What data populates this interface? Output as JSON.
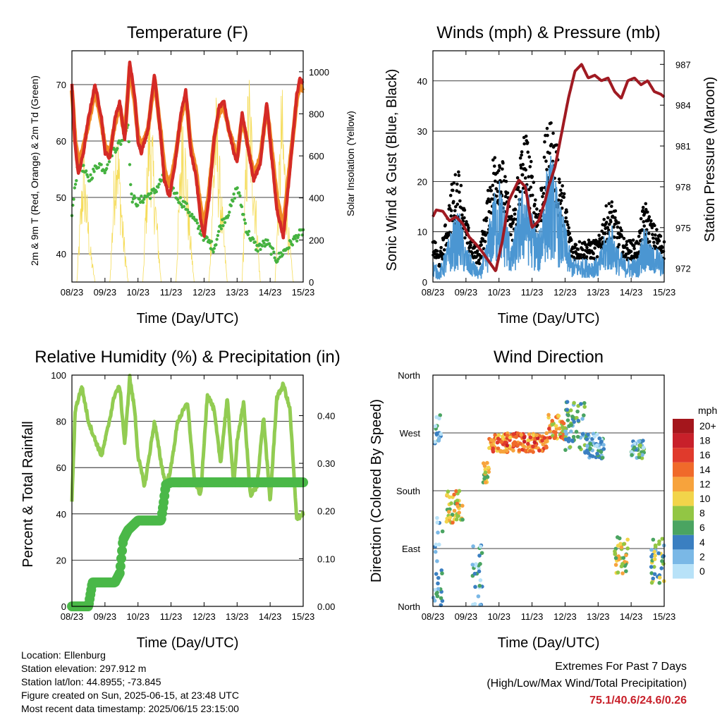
{
  "chart_data": [
    {
      "type": "line",
      "title": "Temperature (F)",
      "xlabel": "Time (Day/UTC)",
      "ylabel": "2m & 9m T (Red, Orange) & 2m Td (Green)",
      "ylabel_right": "Solar Insolation (Yellow)",
      "x_ticks": [
        "08/23",
        "09/23",
        "10/23",
        "11/23",
        "12/23",
        "13/23",
        "14/23",
        "15/23"
      ],
      "xlim": [
        0,
        7
      ],
      "ylim": [
        35,
        76
      ],
      "y_ticks": [
        40,
        50,
        60,
        70
      ],
      "y2lim": [
        0,
        1100
      ],
      "y2_ticks": [
        0,
        200,
        400,
        600,
        800,
        1000
      ],
      "series": [
        {
          "name": "2m T",
          "color": "#d42a26",
          "x": [
            0,
            0.1,
            0.2,
            0.35,
            0.5,
            0.7,
            0.9,
            1.0,
            1.15,
            1.3,
            1.45,
            1.6,
            1.75,
            1.9,
            2.0,
            2.1,
            2.3,
            2.5,
            2.7,
            2.8,
            2.95,
            3.1,
            3.3,
            3.45,
            3.6,
            3.75,
            3.9,
            4.0,
            4.15,
            4.3,
            4.45,
            4.6,
            4.75,
            4.9,
            5.0,
            5.15,
            5.3,
            5.5,
            5.7,
            5.9,
            6.0,
            6.2,
            6.4,
            6.6,
            6.8,
            6.9,
            7.0
          ],
          "y": [
            70,
            59,
            54,
            58,
            64,
            70,
            64,
            58,
            57,
            64,
            67,
            60,
            74,
            68,
            60,
            58,
            62,
            72,
            60,
            53,
            50,
            55,
            65,
            69,
            58,
            54,
            46,
            43,
            50,
            60,
            66,
            67,
            62,
            58,
            56,
            65,
            60,
            53,
            56,
            67,
            60,
            48,
            43,
            55,
            68,
            71,
            70
          ]
        },
        {
          "name": "9m T",
          "color": "#f08a25",
          "x": [
            0,
            0.1,
            0.2,
            0.35,
            0.5,
            0.7,
            0.9,
            1.0,
            1.15,
            1.3,
            1.45,
            1.6,
            1.75,
            1.9,
            2.0,
            2.1,
            2.3,
            2.5,
            2.7,
            2.8,
            2.95,
            3.1,
            3.3,
            3.45,
            3.6,
            3.75,
            3.9,
            4.0,
            4.15,
            4.3,
            4.45,
            4.6,
            4.75,
            4.9,
            5.0,
            5.15,
            5.3,
            5.5,
            5.7,
            5.9,
            6.0,
            6.2,
            6.4,
            6.6,
            6.8,
            6.9,
            7.0
          ],
          "y": [
            69,
            60,
            56,
            59,
            63,
            69,
            63,
            59,
            58,
            63,
            66,
            61,
            73,
            67,
            61,
            59,
            62,
            71,
            61,
            55,
            52,
            56,
            64,
            68,
            59,
            55,
            48,
            45,
            51,
            60,
            65,
            66,
            62,
            59,
            57,
            64,
            60,
            54,
            57,
            66,
            61,
            50,
            45,
            56,
            67,
            70,
            69
          ]
        },
        {
          "name": "2m Td",
          "color": "#45b240",
          "x": [
            0,
            0.2,
            0.5,
            0.8,
            1.0,
            1.2,
            1.5,
            1.7,
            1.8,
            2.0,
            2.2,
            2.5,
            2.8,
            3.0,
            3.2,
            3.5,
            3.8,
            4.0,
            4.3,
            4.5,
            4.8,
            5.0,
            5.3,
            5.6,
            5.9,
            6.2,
            6.5,
            6.8,
            7.0
          ],
          "y": [
            47,
            57,
            53,
            56,
            55,
            58,
            60,
            63,
            50,
            49,
            50,
            51,
            54,
            52,
            50,
            48,
            45,
            43,
            41,
            45,
            48,
            52,
            44,
            41,
            42,
            39,
            41,
            43,
            44
          ]
        },
        {
          "name": "Solar Insolation",
          "axis": "right",
          "color": "#f5dc5a",
          "x": [
            0,
            0.15,
            0.35,
            0.55,
            0.7,
            1.0,
            1.15,
            1.35,
            1.55,
            1.7,
            2.0,
            2.15,
            2.35,
            2.55,
            2.7,
            3.0,
            3.15,
            3.35,
            3.55,
            3.7,
            4.0,
            4.15,
            4.35,
            4.55,
            4.7,
            5.0,
            5.15,
            5.35,
            5.55,
            5.7,
            6.0,
            6.15,
            6.35,
            6.55,
            6.7,
            7.0
          ],
          "y": [
            0,
            0,
            700,
            200,
            0,
            0,
            0,
            900,
            300,
            0,
            0,
            0,
            1000,
            400,
            0,
            0,
            0,
            1000,
            350,
            0,
            0,
            0,
            950,
            400,
            0,
            0,
            0,
            1100,
            500,
            0,
            0,
            0,
            1000,
            300,
            0,
            0
          ]
        }
      ]
    },
    {
      "type": "line",
      "title": "Winds (mph) & Pressure (mb)",
      "xlabel": "Time (Day/UTC)",
      "ylabel": "Sonic Wind & Gust (Blue, Black)",
      "ylabel_right": "Station Pressure (Maroon)",
      "x_ticks": [
        "08/23",
        "09/23",
        "10/23",
        "11/23",
        "12/23",
        "13/23",
        "14/23",
        "15/23"
      ],
      "xlim": [
        0,
        7
      ],
      "ylim": [
        0,
        46
      ],
      "y_ticks": [
        0,
        10,
        20,
        30,
        40
      ],
      "y2lim": [
        971,
        988
      ],
      "y2_ticks": [
        972,
        975,
        978,
        981,
        984,
        987
      ],
      "series": [
        {
          "name": "Sonic Wind",
          "color": "#4b96d2",
          "x": [
            0,
            0.2,
            0.4,
            0.6,
            0.8,
            1.0,
            1.2,
            1.4,
            1.6,
            1.8,
            2.0,
            2.2,
            2.4,
            2.6,
            2.8,
            3.0,
            3.2,
            3.4,
            3.6,
            3.8,
            4.0,
            4.2,
            4.4,
            4.6,
            4.8,
            5.0,
            5.2,
            5.4,
            5.6,
            5.8,
            6.0,
            6.2,
            6.4,
            6.6,
            6.8,
            7.0
          ],
          "y": [
            4,
            2,
            6,
            10,
            12,
            6,
            4,
            2,
            6,
            14,
            18,
            12,
            6,
            14,
            18,
            12,
            8,
            18,
            22,
            14,
            10,
            4,
            4,
            4,
            4,
            4,
            8,
            10,
            6,
            4,
            4,
            4,
            10,
            6,
            6,
            4
          ]
        },
        {
          "name": "Gust",
          "color": "#000000",
          "x": [
            0,
            0.2,
            0.4,
            0.6,
            0.8,
            1.0,
            1.2,
            1.4,
            1.6,
            1.8,
            2.0,
            2.2,
            2.4,
            2.6,
            2.8,
            3.0,
            3.2,
            3.4,
            3.6,
            3.8,
            4.0,
            4.2,
            4.4,
            4.6,
            4.8,
            5.0,
            5.2,
            5.4,
            5.6,
            5.8,
            6.0,
            6.2,
            6.4,
            6.6,
            6.8,
            7.0
          ],
          "y": [
            9,
            5,
            12,
            20,
            22,
            12,
            8,
            6,
            14,
            24,
            28,
            20,
            12,
            24,
            30,
            22,
            14,
            28,
            32,
            24,
            16,
            8,
            8,
            8,
            8,
            8,
            14,
            16,
            12,
            8,
            8,
            8,
            16,
            12,
            10,
            8
          ]
        },
        {
          "name": "Station Pressure",
          "axis": "right",
          "color": "#a01a22",
          "x": [
            0,
            0.1,
            0.3,
            0.5,
            0.7,
            0.9,
            1.1,
            1.3,
            1.5,
            1.7,
            1.9,
            2.1,
            2.3,
            2.6,
            2.8,
            3.0,
            3.2,
            3.4,
            3.5,
            3.7,
            3.9,
            4.1,
            4.3,
            4.5,
            4.7,
            4.9,
            5.1,
            5.3,
            5.5,
            5.7,
            5.9,
            6.1,
            6.3,
            6.5,
            6.7,
            6.9,
            7.0
          ],
          "y": [
            975.8,
            976.3,
            976.2,
            975.5,
            975.8,
            975.3,
            974.3,
            973.8,
            973.2,
            972.5,
            971.8,
            974,
            977,
            978.5,
            978,
            975,
            975.5,
            977,
            978,
            979.5,
            982,
            984.5,
            986.5,
            987,
            986,
            986.2,
            985.8,
            986,
            985,
            984.5,
            985.8,
            986,
            985.5,
            985.8,
            985,
            984.8,
            984.6
          ]
        }
      ]
    },
    {
      "type": "line",
      "title": "Relative Humidity (%) & Precipitation (in)",
      "xlabel": "Time (Day/UTC)",
      "ylabel": "Percent & Total Rainfall",
      "x_ticks": [
        "08/23",
        "09/23",
        "10/23",
        "11/23",
        "12/23",
        "13/23",
        "14/23",
        "15/23"
      ],
      "xlim": [
        0,
        7
      ],
      "ylim": [
        0,
        100
      ],
      "y_ticks": [
        0,
        20,
        40,
        60,
        80,
        100
      ],
      "y2lim": [
        0,
        0.485
      ],
      "y2_ticks": [
        "0.00",
        "0.10",
        "0.20",
        "0.30",
        "0.40"
      ],
      "series": [
        {
          "name": "Relative Humidity",
          "color": "#92cc52",
          "x": [
            0,
            0.1,
            0.3,
            0.5,
            0.7,
            0.9,
            1.1,
            1.3,
            1.45,
            1.6,
            1.75,
            1.9,
            2.0,
            2.2,
            2.5,
            2.7,
            2.85,
            3.0,
            3.2,
            3.5,
            3.7,
            3.9,
            4.1,
            4.3,
            4.5,
            4.7,
            4.9,
            5.0,
            5.2,
            5.4,
            5.6,
            5.8,
            6.0,
            6.2,
            6.4,
            6.6,
            6.8,
            7.0
          ],
          "y": [
            46,
            85,
            95,
            80,
            72,
            65,
            78,
            92,
            95,
            70,
            99,
            85,
            65,
            52,
            80,
            62,
            52,
            60,
            80,
            88,
            55,
            48,
            92,
            85,
            62,
            90,
            52,
            72,
            88,
            48,
            52,
            82,
            45,
            90,
            96,
            85,
            38,
            40
          ]
        },
        {
          "name": "Total Precipitation",
          "axis": "right",
          "color": "#4ab848",
          "x": [
            0,
            0.5,
            0.62,
            1.3,
            1.45,
            1.55,
            1.7,
            1.85,
            2.0,
            2.7,
            2.78,
            2.84,
            3.0,
            7.0
          ],
          "y": [
            0,
            0,
            0.05,
            0.05,
            0.07,
            0.14,
            0.16,
            0.17,
            0.18,
            0.18,
            0.22,
            0.255,
            0.26,
            0.26
          ]
        }
      ]
    },
    {
      "type": "scatter",
      "title": "Wind Direction",
      "xlabel": "Time (Day/UTC)",
      "ylabel": "Direction (Colored By Speed)",
      "x_ticks": [
        "08/23",
        "09/23",
        "10/23",
        "11/23",
        "12/23",
        "13/23",
        "14/23",
        "15/23"
      ],
      "xlim": [
        0,
        7
      ],
      "y_ticks": [
        "North",
        "East",
        "South",
        "West",
        "North"
      ],
      "ylim": [
        0,
        360
      ],
      "legend_title": "mph",
      "legend_labels": [
        "20+",
        "18",
        "16",
        "14",
        "12",
        "10",
        "8",
        "6",
        "4",
        "2",
        "0"
      ],
      "legend_colors": [
        "#a4161c",
        "#c8202a",
        "#e03a2c",
        "#f06a2a",
        "#f7a33c",
        "#f2d44a",
        "#92c644",
        "#4aa461",
        "#3a7fc1",
        "#7ab8e6",
        "#b8e2f8"
      ],
      "clusters": [
        {
          "x": [
            0,
            0.3
          ],
          "y": [
            0,
            140
          ],
          "speed": 3
        },
        {
          "x": [
            0.05,
            0.25
          ],
          "y": [
            250,
            300
          ],
          "speed": 2
        },
        {
          "x": [
            0.4,
            0.9
          ],
          "y": [
            130,
            180
          ],
          "speed": 10
        },
        {
          "x": [
            1.2,
            1.5
          ],
          "y": [
            0,
            100
          ],
          "speed": 3
        },
        {
          "x": [
            1.5,
            1.7
          ],
          "y": [
            190,
            230
          ],
          "speed": 9
        },
        {
          "x": [
            1.7,
            2.2
          ],
          "y": [
            240,
            270
          ],
          "speed": 13
        },
        {
          "x": [
            2.2,
            3.5
          ],
          "y": [
            240,
            270
          ],
          "speed": 14
        },
        {
          "x": [
            3.5,
            4.0
          ],
          "y": [
            260,
            300
          ],
          "speed": 12
        },
        {
          "x": [
            4.0,
            4.6
          ],
          "y": [
            240,
            320
          ],
          "speed": 5
        },
        {
          "x": [
            4.6,
            5.2
          ],
          "y": [
            230,
            270
          ],
          "speed": 3
        },
        {
          "x": [
            5.5,
            5.9
          ],
          "y": [
            50,
            110
          ],
          "speed": 9
        },
        {
          "x": [
            6.0,
            6.4
          ],
          "y": [
            230,
            260
          ],
          "speed": 4
        },
        {
          "x": [
            6.6,
            7.0
          ],
          "y": [
            30,
            110
          ],
          "speed": 6
        }
      ]
    }
  ],
  "info": {
    "location": "Location: Ellenburg",
    "elevation": "Station elevation: 297.912 m",
    "latlon": "Station lat/lon: 44.8955; -73.845",
    "created": "Figure created on Sun, 2025-06-15, at 23:48 UTC",
    "latest": "Most recent data timestamp: 2025/06/15 23:15:00"
  },
  "extremes": {
    "title": "Extremes For Past 7 Days",
    "subtitle": "(High/Low/Max Wind/Total Precipitation)",
    "values": "75.1/40.6/24.6/0.26"
  }
}
